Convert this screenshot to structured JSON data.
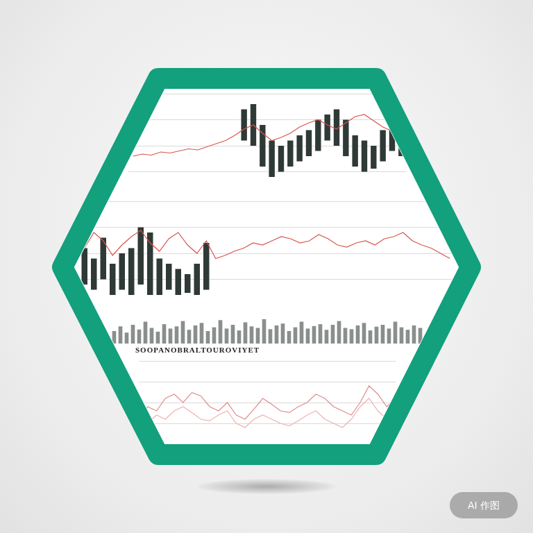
{
  "chart_data": [
    {
      "type": "bar",
      "categories": [
        null,
        null,
        null,
        null,
        null,
        null,
        null,
        null,
        null,
        null,
        null,
        null,
        null,
        null,
        null,
        null,
        null,
        null,
        null,
        null,
        null,
        null,
        null,
        null,
        null,
        null,
        null,
        null,
        null,
        null
      ],
      "series": [
        {
          "type": "line",
          "color": "#d9534f",
          "values": [
            40,
            42,
            41,
            44,
            43,
            45,
            47,
            46,
            49,
            52,
            55,
            60,
            66,
            70,
            62,
            55,
            58,
            62,
            68,
            72,
            75,
            70,
            66,
            72,
            78,
            80,
            74,
            68,
            64,
            60
          ]
        },
        {
          "type": "bar",
          "color": "#2f3a36",
          "values": [
            null,
            null,
            null,
            null,
            null,
            null,
            null,
            null,
            null,
            null,
            null,
            null,
            [
              55,
              85
            ],
            [
              50,
              90
            ],
            [
              30,
              70
            ],
            [
              20,
              55
            ],
            [
              25,
              50
            ],
            [
              30,
              55
            ],
            [
              35,
              60
            ],
            [
              40,
              65
            ],
            [
              45,
              75
            ],
            [
              55,
              80
            ],
            [
              50,
              85
            ],
            [
              40,
              75
            ],
            [
              30,
              60
            ],
            [
              25,
              55
            ],
            [
              28,
              50
            ],
            [
              35,
              65
            ],
            [
              45,
              70
            ],
            [
              40,
              60
            ]
          ]
        }
      ],
      "ylim": [
        0,
        100
      ],
      "yticks": [
        0,
        25,
        50,
        75,
        100
      ],
      "grid": true,
      "tick_labels": false
    },
    {
      "type": "bar",
      "categories": [
        null,
        null,
        null,
        null,
        null,
        null,
        null,
        null,
        null,
        null,
        null,
        null,
        null,
        null,
        null,
        null,
        null,
        null,
        null,
        null,
        null,
        null,
        null,
        null,
        null,
        null,
        null,
        null,
        null,
        null,
        null,
        null,
        null,
        null,
        null,
        null,
        null,
        null,
        null,
        null
      ],
      "series": [
        {
          "type": "line",
          "color": "#d9534f",
          "values": [
            55,
            70,
            62,
            48,
            58,
            66,
            72,
            60,
            52,
            64,
            70,
            58,
            50,
            62,
            45,
            48,
            52,
            55,
            60,
            58,
            62,
            66,
            64,
            60,
            62,
            68,
            64,
            58,
            56,
            60,
            62,
            58,
            64,
            66,
            70,
            62,
            58,
            55,
            50,
            45
          ]
        },
        {
          "type": "bar",
          "color": "#2f3a36",
          "values": [
            [
              20,
              55
            ],
            [
              15,
              45
            ],
            [
              25,
              65
            ],
            [
              10,
              40
            ],
            [
              15,
              50
            ],
            [
              10,
              55
            ],
            [
              20,
              75
            ],
            [
              10,
              70
            ],
            [
              10,
              45
            ],
            [
              15,
              40
            ],
            [
              10,
              35
            ],
            [
              12,
              30
            ],
            [
              10,
              40
            ],
            [
              15,
              60
            ],
            null,
            null,
            null,
            null,
            null,
            null,
            null,
            null,
            null,
            null,
            null,
            null,
            null,
            null,
            null,
            null,
            null,
            null,
            null,
            null,
            null,
            null,
            null,
            null,
            null,
            null
          ]
        }
      ],
      "ylim": [
        0,
        100
      ],
      "yticks": [
        0,
        25,
        50,
        75,
        100
      ],
      "grid": true,
      "tick_labels": false
    },
    {
      "type": "bar",
      "categories": [
        null,
        null,
        null,
        null,
        null,
        null,
        null,
        null,
        null,
        null,
        null,
        null,
        null,
        null,
        null,
        null,
        null,
        null,
        null,
        null,
        null,
        null,
        null,
        null,
        null,
        null,
        null,
        null,
        null,
        null,
        null,
        null,
        null,
        null,
        null,
        null,
        null,
        null,
        null,
        null,
        null,
        null,
        null,
        null,
        null,
        null,
        null,
        null,
        null,
        null
      ],
      "series": [
        {
          "type": "bar",
          "color": "#8a8f8c",
          "values": [
            40,
            55,
            35,
            60,
            45,
            70,
            50,
            38,
            62,
            48,
            55,
            72,
            44,
            58,
            66,
            40,
            52,
            75,
            48,
            60,
            42,
            68,
            55,
            50,
            78,
            46,
            58,
            64,
            40,
            52,
            70,
            48,
            56,
            62,
            44,
            60,
            72,
            50,
            46,
            58,
            66,
            42,
            54,
            60,
            48,
            70,
            52,
            44,
            58,
            50
          ]
        }
      ],
      "ylim": [
        0,
        100
      ],
      "yticks": [
        0,
        50,
        100
      ],
      "grid": false,
      "tick_labels": false
    },
    {
      "type": "line",
      "categories": [
        null,
        null,
        null,
        null,
        null,
        null,
        null,
        null,
        null,
        null,
        null,
        null,
        null,
        null,
        null,
        null,
        null,
        null,
        null,
        null,
        null,
        null,
        null,
        null,
        null,
        null,
        null,
        null,
        null,
        null
      ],
      "series": [
        {
          "type": "line",
          "color": "#e08a8a",
          "values": [
            30,
            45,
            40,
            55,
            60,
            50,
            62,
            58,
            45,
            40,
            50,
            35,
            30,
            42,
            55,
            48,
            40,
            38,
            45,
            50,
            60,
            55,
            45,
            40,
            35,
            50,
            70,
            60,
            45,
            55
          ]
        },
        {
          "type": "line",
          "color": "#f0b0b0",
          "values": [
            20,
            25,
            35,
            30,
            40,
            45,
            38,
            30,
            28,
            35,
            40,
            25,
            20,
            30,
            35,
            30,
            25,
            22,
            28,
            35,
            40,
            30,
            25,
            20,
            30,
            45,
            55,
            40,
            30,
            40
          ]
        }
      ],
      "ylim": [
        0,
        100
      ],
      "yticks": [
        0,
        25,
        50,
        75,
        100
      ],
      "grid": true,
      "tick_labels": false
    }
  ],
  "caption": "SOOPANOBRALTOUROVIYET",
  "watermark": "AI 作图"
}
